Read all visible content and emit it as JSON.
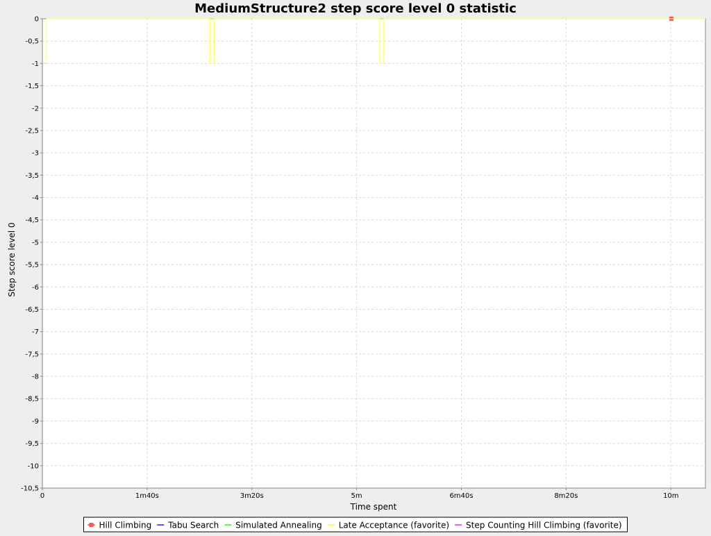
{
  "chart_data": {
    "type": "line",
    "title": "MediumStructure2 step score level 0 statistic",
    "xlabel": "Time spent",
    "ylabel": "Step score level 0",
    "xlim": [
      0,
      633
    ],
    "ylim": [
      -10.5,
      0
    ],
    "x_unit": "seconds",
    "grid": true,
    "legend_position": "bottom",
    "x_ticks": [
      {
        "value": 0,
        "label": "0"
      },
      {
        "value": 100,
        "label": "1m40s"
      },
      {
        "value": 200,
        "label": "3m20s"
      },
      {
        "value": 300,
        "label": "5m"
      },
      {
        "value": 400,
        "label": "6m40s"
      },
      {
        "value": 500,
        "label": "8m20s"
      },
      {
        "value": 600,
        "label": "10m"
      }
    ],
    "y_ticks": [
      {
        "value": 0,
        "label": "0"
      },
      {
        "value": -0.5,
        "label": "-0,5"
      },
      {
        "value": -1,
        "label": "-1"
      },
      {
        "value": -1.5,
        "label": "-1,5"
      },
      {
        "value": -2,
        "label": "-2"
      },
      {
        "value": -2.5,
        "label": "-2,5"
      },
      {
        "value": -3,
        "label": "-3"
      },
      {
        "value": -3.5,
        "label": "-3,5"
      },
      {
        "value": -4,
        "label": "-4"
      },
      {
        "value": -4.5,
        "label": "-4,5"
      },
      {
        "value": -5,
        "label": "-5"
      },
      {
        "value": -5.5,
        "label": "-5,5"
      },
      {
        "value": -6,
        "label": "-6"
      },
      {
        "value": -6.5,
        "label": "-6,5"
      },
      {
        "value": -7,
        "label": "-7"
      },
      {
        "value": -7.5,
        "label": "-7,5"
      },
      {
        "value": -8,
        "label": "-8"
      },
      {
        "value": -8.5,
        "label": "-8,5"
      },
      {
        "value": -9,
        "label": "-9"
      },
      {
        "value": -9.5,
        "label": "-9,5"
      },
      {
        "value": -10,
        "label": "-10"
      },
      {
        "value": -10.5,
        "label": "-10,5"
      }
    ],
    "series": [
      {
        "name": "Hill Climbing",
        "color": "#ff5555",
        "marker": "square",
        "step": true,
        "points": [
          [
            600.5,
            0
          ]
        ]
      },
      {
        "name": "Tabu Search",
        "color": "#5555ff",
        "marker": "none",
        "step": true,
        "points": [
          [
            0.3,
            -10.5
          ],
          [
            0.3,
            -1
          ],
          [
            4,
            -1
          ],
          [
            4,
            0
          ],
          [
            633,
            0
          ]
        ]
      },
      {
        "name": "Simulated Annealing",
        "color": "#55ff55",
        "marker": "none",
        "step": true,
        "points": [
          [
            0.3,
            -10.5
          ],
          [
            0.3,
            -1
          ],
          [
            4,
            -1
          ],
          [
            4,
            0
          ],
          [
            633,
            0
          ]
        ]
      },
      {
        "name": "Late Acceptance (favorite)",
        "color": "#ffff55",
        "marker": "none",
        "step": true,
        "points": [
          [
            0.3,
            -10.5
          ],
          [
            0.3,
            -1
          ],
          [
            4,
            -1
          ],
          [
            4,
            0
          ],
          [
            160,
            0
          ],
          [
            160,
            -1
          ],
          [
            164,
            -1
          ],
          [
            164,
            0
          ],
          [
            322,
            0
          ],
          [
            322,
            -1
          ],
          [
            326,
            -1
          ],
          [
            326,
            0
          ],
          [
            633,
            0
          ]
        ]
      },
      {
        "name": "Step Counting Hill Climbing (favorite)",
        "color": "#ff55ff",
        "marker": "none",
        "step": true,
        "points": []
      }
    ]
  }
}
